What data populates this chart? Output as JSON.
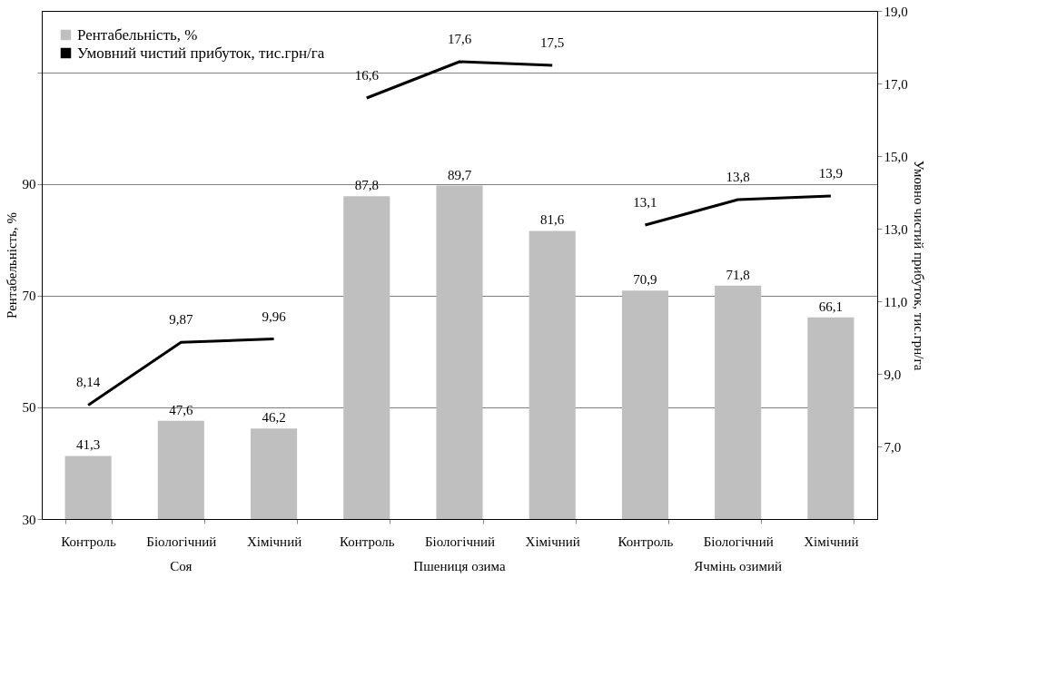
{
  "chart_data": {
    "type": "bar",
    "categories": [
      "Контроль",
      "Біологічний",
      "Хімічний",
      "Контроль",
      "Біологічний",
      "Хімічний",
      "Контроль",
      "Біологічний",
      "Хімічний"
    ],
    "series": [
      {
        "name": "Рентабельність, %",
        "color": "#bfbfbf",
        "values": [
          41.3,
          47.6,
          46.2,
          87.8,
          89.7,
          81.6,
          70.9,
          71.8,
          66.1
        ],
        "value_labels": [
          "41,3",
          "47,6",
          "46,2",
          "87,8",
          "89,7",
          "81,6",
          "70,9",
          "71,8",
          "66,1"
        ]
      },
      {
        "name": "Умовний чистий прибуток, тис.грн/га",
        "type": "line",
        "axis": "y2",
        "color": "#000000",
        "values": [
          8.14,
          9.87,
          9.96,
          16.6,
          17.6,
          17.5,
          13.1,
          13.8,
          13.9
        ],
        "value_labels": [
          "8,14",
          "9,87",
          "9,96",
          "16,6",
          "17,6",
          "17,5",
          "13,1",
          "13,8",
          "13,9"
        ]
      }
    ],
    "annotations": [
      "Соя",
      "Пшениця озима",
      "Ячмінь озимий"
    ],
    "ylabel": "Рентабельність, %",
    "y2label": "Умовно чистий прибуток, тис.грн/га",
    "ylim": [
      30,
      121
    ],
    "yticks": [
      30,
      50,
      70,
      90,
      {
        "value": 110,
        "label": null
      }
    ],
    "y2lim": [
      5,
      19
    ],
    "y2ticks": [
      {
        "value": 7,
        "label": "7,0"
      },
      {
        "value": 9,
        "label": "9,0"
      },
      {
        "value": 11,
        "label": "11,0"
      },
      {
        "value": 13,
        "label": "13,0"
      },
      {
        "value": 15,
        "label": "15,0"
      },
      {
        "value": 17,
        "label": "17,0"
      },
      {
        "value": 19,
        "label": "19,0"
      }
    ],
    "grid": "y",
    "legend": "top left"
  }
}
